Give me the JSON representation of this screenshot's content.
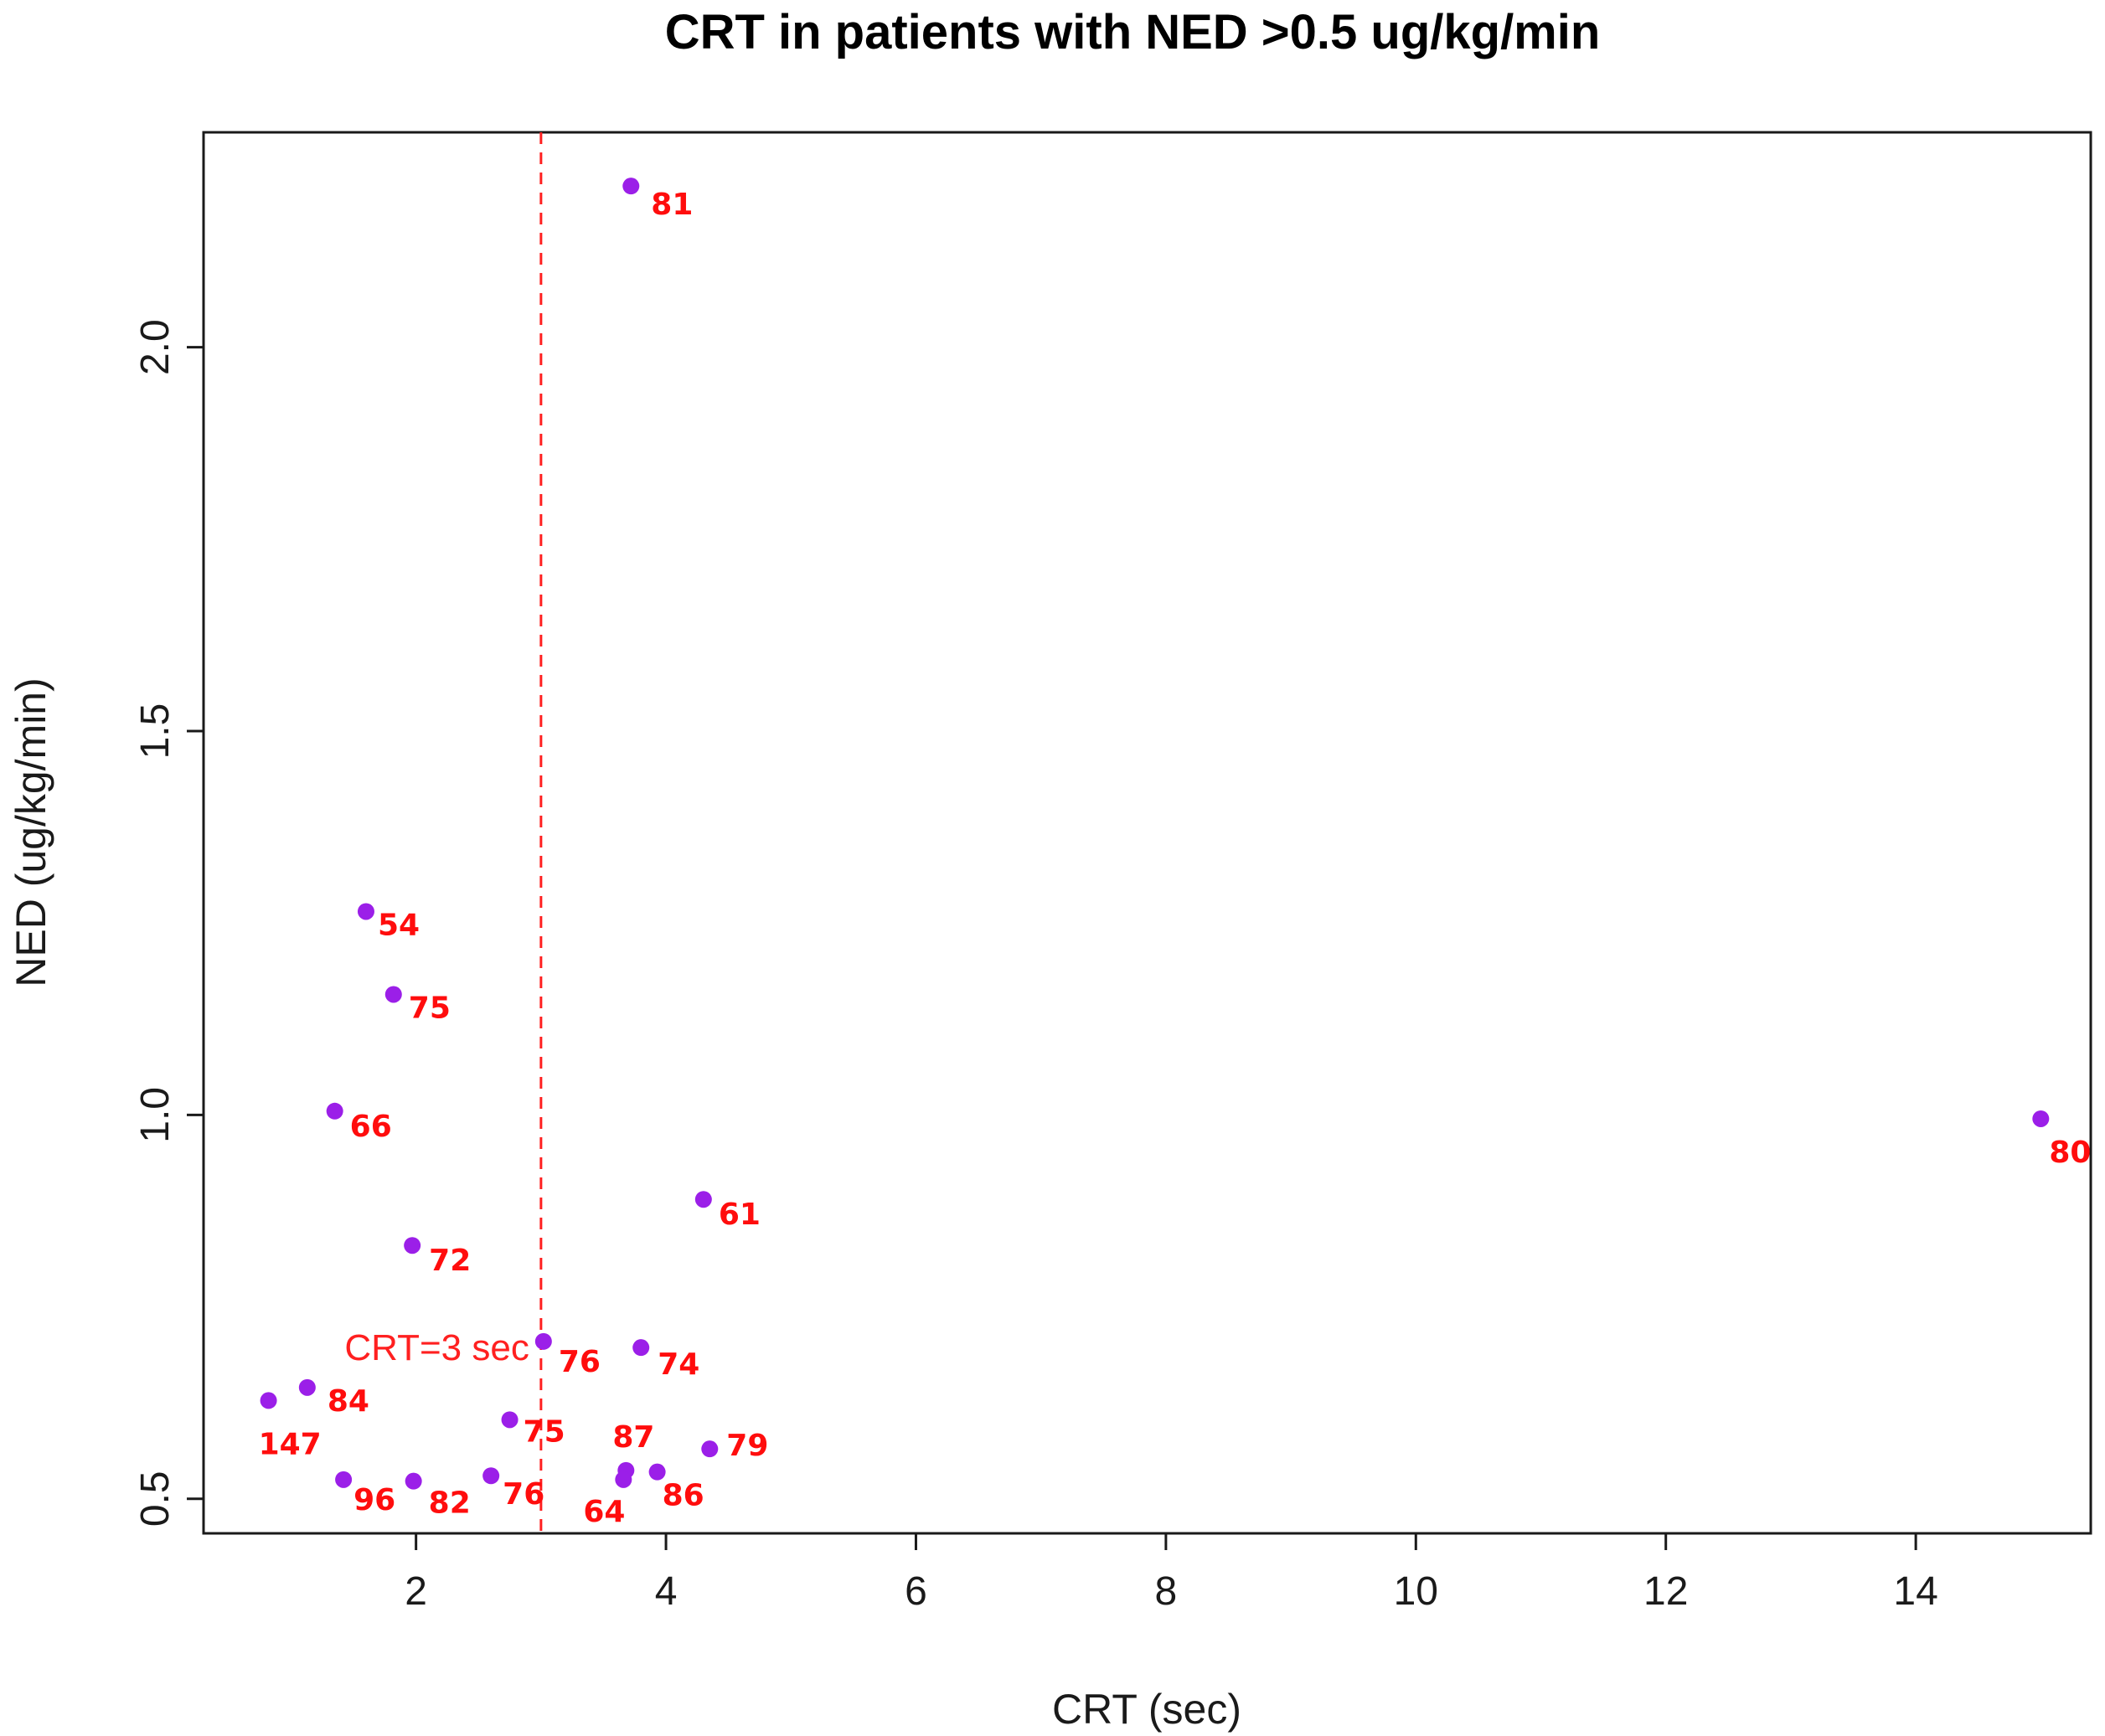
{
  "chart_data": {
    "type": "scatter",
    "title": "CRT in patients with NED >0.5 ug/kg/min",
    "xlabel": "CRT (sec)",
    "ylabel": "NED (ug/kg/min)",
    "xlim": [
      0.3,
      15.4
    ],
    "ylim": [
      0.455,
      2.28
    ],
    "xticks": [
      2,
      4,
      6,
      8,
      10,
      12,
      14
    ],
    "yticks": [
      0.5,
      1.0,
      1.5,
      2.0
    ],
    "ytick_labels": [
      "0.5",
      "1.0",
      "1.5",
      "2.0"
    ],
    "grid": false,
    "point_color": "#9b1fe8",
    "label_color": "#ff0d0d",
    "reference_line": {
      "axis": "x",
      "value": 3,
      "style": "dashed",
      "color": "#ff2020",
      "label": "CRT=3 sec"
    },
    "points": [
      {
        "x": 3.72,
        "y": 2.21,
        "label": "81"
      },
      {
        "x": 1.6,
        "y": 1.265,
        "label": "54"
      },
      {
        "x": 1.82,
        "y": 1.157,
        "label": "75"
      },
      {
        "x": 1.35,
        "y": 1.005,
        "label": "66"
      },
      {
        "x": 15.0,
        "y": 0.995,
        "label": "80"
      },
      {
        "x": 4.3,
        "y": 0.89,
        "label": "61"
      },
      {
        "x": 1.97,
        "y": 0.83,
        "label": "72"
      },
      {
        "x": 3.02,
        "y": 0.705,
        "label": "76"
      },
      {
        "x": 3.8,
        "y": 0.697,
        "label": "74"
      },
      {
        "x": 1.13,
        "y": 0.645,
        "label": "84"
      },
      {
        "x": 0.82,
        "y": 0.628,
        "label": "147"
      },
      {
        "x": 2.75,
        "y": 0.603,
        "label": "75"
      },
      {
        "x": 4.35,
        "y": 0.565,
        "label": "79"
      },
      {
        "x": 3.68,
        "y": 0.537,
        "label": "87"
      },
      {
        "x": 3.93,
        "y": 0.535,
        "label": "86"
      },
      {
        "x": 3.66,
        "y": 0.525,
        "label": "64"
      },
      {
        "x": 2.6,
        "y": 0.53,
        "label": "76"
      },
      {
        "x": 1.42,
        "y": 0.525,
        "label": "96"
      },
      {
        "x": 1.98,
        "y": 0.523,
        "label": "82"
      }
    ]
  }
}
